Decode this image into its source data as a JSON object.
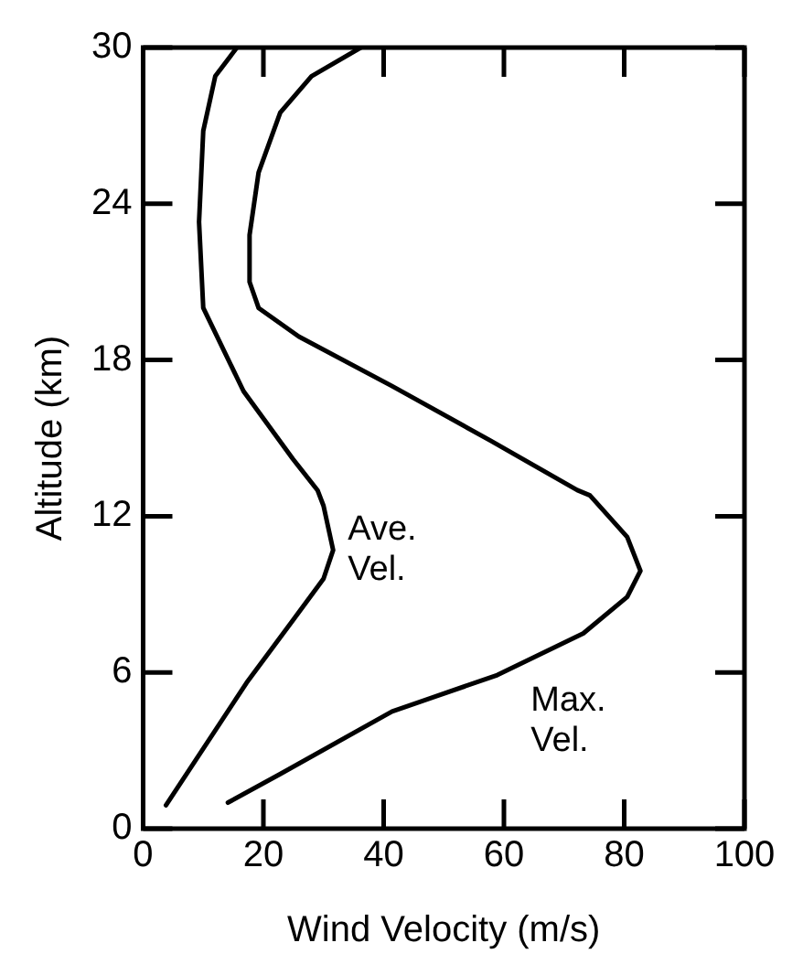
{
  "chart_data": {
    "type": "line",
    "xlabel": "Wind Velocity (m/s)",
    "ylabel": "Altitude (km)",
    "xlim": [
      0,
      100
    ],
    "xticks": [
      0,
      20,
      40,
      60,
      80,
      100
    ],
    "ylim": [
      0,
      30
    ],
    "yticks": [
      0,
      6,
      12,
      18,
      24,
      30
    ],
    "grid": false,
    "legend": false,
    "marker": "none",
    "line_style": "solid",
    "series": [
      {
        "name": "Ave. Vel.",
        "color": "#000000",
        "x": [
          3.8,
          17.2,
          24.9,
          30,
          31.6,
          30,
          29,
          24.9,
          16.7,
          10,
          9.3,
          10,
          12,
          15.6
        ],
        "values": [
          0.9,
          5.6,
          8,
          9.6,
          10.7,
          12.4,
          13,
          14.2,
          16.8,
          20,
          23.3,
          26.8,
          28.9,
          30
        ]
      },
      {
        "name": "Max. Vel.",
        "color": "#000000",
        "x": [
          14.1,
          22.8,
          41.4,
          58.9,
          73.2,
          80.5,
          82.7,
          80.5,
          74.3,
          72.2,
          57.8,
          41.4,
          25.9,
          19.2,
          17.7,
          17.7,
          19.2,
          22.8,
          28,
          36.2
        ],
        "values": [
          1,
          2.1,
          4.5,
          5.9,
          7.5,
          8.9,
          9.9,
          11.2,
          12.8,
          13,
          14.9,
          17,
          18.9,
          20,
          21,
          22.8,
          25.2,
          27.5,
          28.9,
          30
        ]
      }
    ]
  }
}
